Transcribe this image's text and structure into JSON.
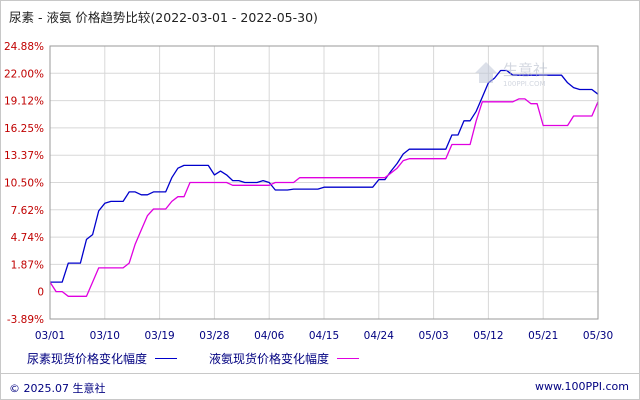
{
  "title": "尿素 - 液氨 价格趋势比较(2022-03-01 - 2022-05-30)",
  "watermark": {
    "text": "生意社",
    "sub": "100PPI.COM",
    "color": "#b0b8c8"
  },
  "footer": {
    "copyright": "© 2025.07 生意社",
    "site": "www.100PPI.com"
  },
  "chart_data": {
    "type": "line",
    "title": "尿素 - 液氨 价格趋势比较(2022-03-01 - 2022-05-30)",
    "x_ticks": [
      "03/01",
      "03/10",
      "03/19",
      "03/28",
      "04/06",
      "04/15",
      "04/24",
      "05/03",
      "05/12",
      "05/21",
      "05/30"
    ],
    "y_ticks": [
      "24.88%",
      "22.00%",
      "19.12%",
      "16.25%",
      "13.37%",
      "10.50%",
      "7.62%",
      "4.74%",
      "1.87%",
      "0",
      "-3.89%"
    ],
    "ylim": [
      -3.89,
      24.88
    ],
    "grid": true,
    "legend_position": "bottom",
    "series": [
      {
        "name": "尿素现货价格变化幅度",
        "color": "#0000cc",
        "points": [
          [
            0,
            0
          ],
          [
            1,
            0
          ],
          [
            2,
            0
          ],
          [
            3,
            2
          ],
          [
            4,
            2
          ],
          [
            5,
            2
          ],
          [
            6,
            4.5
          ],
          [
            7,
            5
          ],
          [
            8,
            7.5
          ],
          [
            9,
            8.3
          ],
          [
            10,
            8.5
          ],
          [
            11,
            8.5
          ],
          [
            12,
            8.5
          ],
          [
            13,
            9.5
          ],
          [
            14,
            9.5
          ],
          [
            15,
            9.2
          ],
          [
            16,
            9.2
          ],
          [
            17,
            9.5
          ],
          [
            18,
            9.5
          ],
          [
            19,
            9.5
          ],
          [
            20,
            11
          ],
          [
            21,
            12
          ],
          [
            22,
            12.3
          ],
          [
            23,
            12.3
          ],
          [
            24,
            12.3
          ],
          [
            25,
            12.3
          ],
          [
            26,
            12.3
          ],
          [
            27,
            11.3
          ],
          [
            28,
            11.7
          ],
          [
            29,
            11.3
          ],
          [
            30,
            10.7
          ],
          [
            31,
            10.7
          ],
          [
            32,
            10.5
          ],
          [
            33,
            10.5
          ],
          [
            34,
            10.5
          ],
          [
            35,
            10.7
          ],
          [
            36,
            10.5
          ],
          [
            37,
            9.7
          ],
          [
            38,
            9.7
          ],
          [
            39,
            9.7
          ],
          [
            40,
            9.8
          ],
          [
            41,
            9.8
          ],
          [
            42,
            9.8
          ],
          [
            43,
            9.8
          ],
          [
            44,
            9.8
          ],
          [
            45,
            10
          ],
          [
            46,
            10
          ],
          [
            47,
            10
          ],
          [
            48,
            10
          ],
          [
            49,
            10
          ],
          [
            50,
            10
          ],
          [
            51,
            10
          ],
          [
            52,
            10
          ],
          [
            53,
            10
          ],
          [
            54,
            10.8
          ],
          [
            55,
            10.8
          ],
          [
            56,
            11.7
          ],
          [
            57,
            12.5
          ],
          [
            58,
            13.5
          ],
          [
            59,
            14
          ],
          [
            60,
            14
          ],
          [
            61,
            14
          ],
          [
            62,
            14
          ],
          [
            63,
            14
          ],
          [
            64,
            14
          ],
          [
            65,
            14
          ],
          [
            66,
            15.5
          ],
          [
            67,
            15.5
          ],
          [
            68,
            17
          ],
          [
            69,
            17
          ],
          [
            70,
            18
          ],
          [
            71,
            19.5
          ],
          [
            72,
            21
          ],
          [
            73,
            21.5
          ],
          [
            74,
            22.3
          ],
          [
            75,
            22.3
          ],
          [
            76,
            21.8
          ],
          [
            77,
            21.8
          ],
          [
            78,
            21.8
          ],
          [
            79,
            21.8
          ],
          [
            80,
            21.8
          ],
          [
            81,
            21.8
          ],
          [
            82,
            21.8
          ],
          [
            83,
            21.8
          ],
          [
            84,
            21.8
          ],
          [
            85,
            21
          ],
          [
            86,
            20.5
          ],
          [
            87,
            20.3
          ],
          [
            88,
            20.3
          ],
          [
            89,
            20.3
          ],
          [
            90,
            19.8
          ]
        ]
      },
      {
        "name": "液氨现货价格变化幅度",
        "color": "#e000e0",
        "points": [
          [
            0,
            0
          ],
          [
            1,
            -1
          ],
          [
            2,
            -1
          ],
          [
            3,
            -1.5
          ],
          [
            4,
            -1.5
          ],
          [
            5,
            -1.5
          ],
          [
            6,
            -1.5
          ],
          [
            7,
            0
          ],
          [
            8,
            1.5
          ],
          [
            9,
            1.5
          ],
          [
            10,
            1.5
          ],
          [
            11,
            1.5
          ],
          [
            12,
            1.5
          ],
          [
            13,
            2
          ],
          [
            14,
            4
          ],
          [
            15,
            5.5
          ],
          [
            16,
            7
          ],
          [
            17,
            7.7
          ],
          [
            18,
            7.7
          ],
          [
            19,
            7.7
          ],
          [
            20,
            8.5
          ],
          [
            21,
            9
          ],
          [
            22,
            9
          ],
          [
            23,
            10.5
          ],
          [
            24,
            10.5
          ],
          [
            25,
            10.5
          ],
          [
            26,
            10.5
          ],
          [
            27,
            10.5
          ],
          [
            28,
            10.5
          ],
          [
            29,
            10.5
          ],
          [
            30,
            10.2
          ],
          [
            31,
            10.2
          ],
          [
            32,
            10.2
          ],
          [
            33,
            10.2
          ],
          [
            34,
            10.2
          ],
          [
            35,
            10.2
          ],
          [
            36,
            10.2
          ],
          [
            37,
            10.5
          ],
          [
            38,
            10.5
          ],
          [
            39,
            10.5
          ],
          [
            40,
            10.5
          ],
          [
            41,
            11
          ],
          [
            42,
            11
          ],
          [
            43,
            11
          ],
          [
            44,
            11
          ],
          [
            45,
            11
          ],
          [
            46,
            11
          ],
          [
            47,
            11
          ],
          [
            48,
            11
          ],
          [
            49,
            11
          ],
          [
            50,
            11
          ],
          [
            51,
            11
          ],
          [
            52,
            11
          ],
          [
            53,
            11
          ],
          [
            54,
            11
          ],
          [
            55,
            11
          ],
          [
            56,
            11.5
          ],
          [
            57,
            12
          ],
          [
            58,
            12.8
          ],
          [
            59,
            13
          ],
          [
            60,
            13
          ],
          [
            61,
            13
          ],
          [
            62,
            13
          ],
          [
            63,
            13
          ],
          [
            64,
            13
          ],
          [
            65,
            13
          ],
          [
            66,
            14.5
          ],
          [
            67,
            14.5
          ],
          [
            68,
            14.5
          ],
          [
            69,
            14.5
          ],
          [
            70,
            17
          ],
          [
            71,
            19
          ],
          [
            72,
            19
          ],
          [
            73,
            19
          ],
          [
            74,
            19
          ],
          [
            75,
            19
          ],
          [
            76,
            19
          ],
          [
            77,
            19.3
          ],
          [
            78,
            19.3
          ],
          [
            79,
            18.8
          ],
          [
            80,
            18.8
          ],
          [
            81,
            16.5
          ],
          [
            82,
            16.5
          ],
          [
            83,
            16.5
          ],
          [
            84,
            16.5
          ],
          [
            85,
            16.5
          ],
          [
            86,
            17.5
          ],
          [
            87,
            17.5
          ],
          [
            88,
            17.5
          ],
          [
            89,
            17.5
          ],
          [
            90,
            19
          ]
        ]
      }
    ]
  }
}
